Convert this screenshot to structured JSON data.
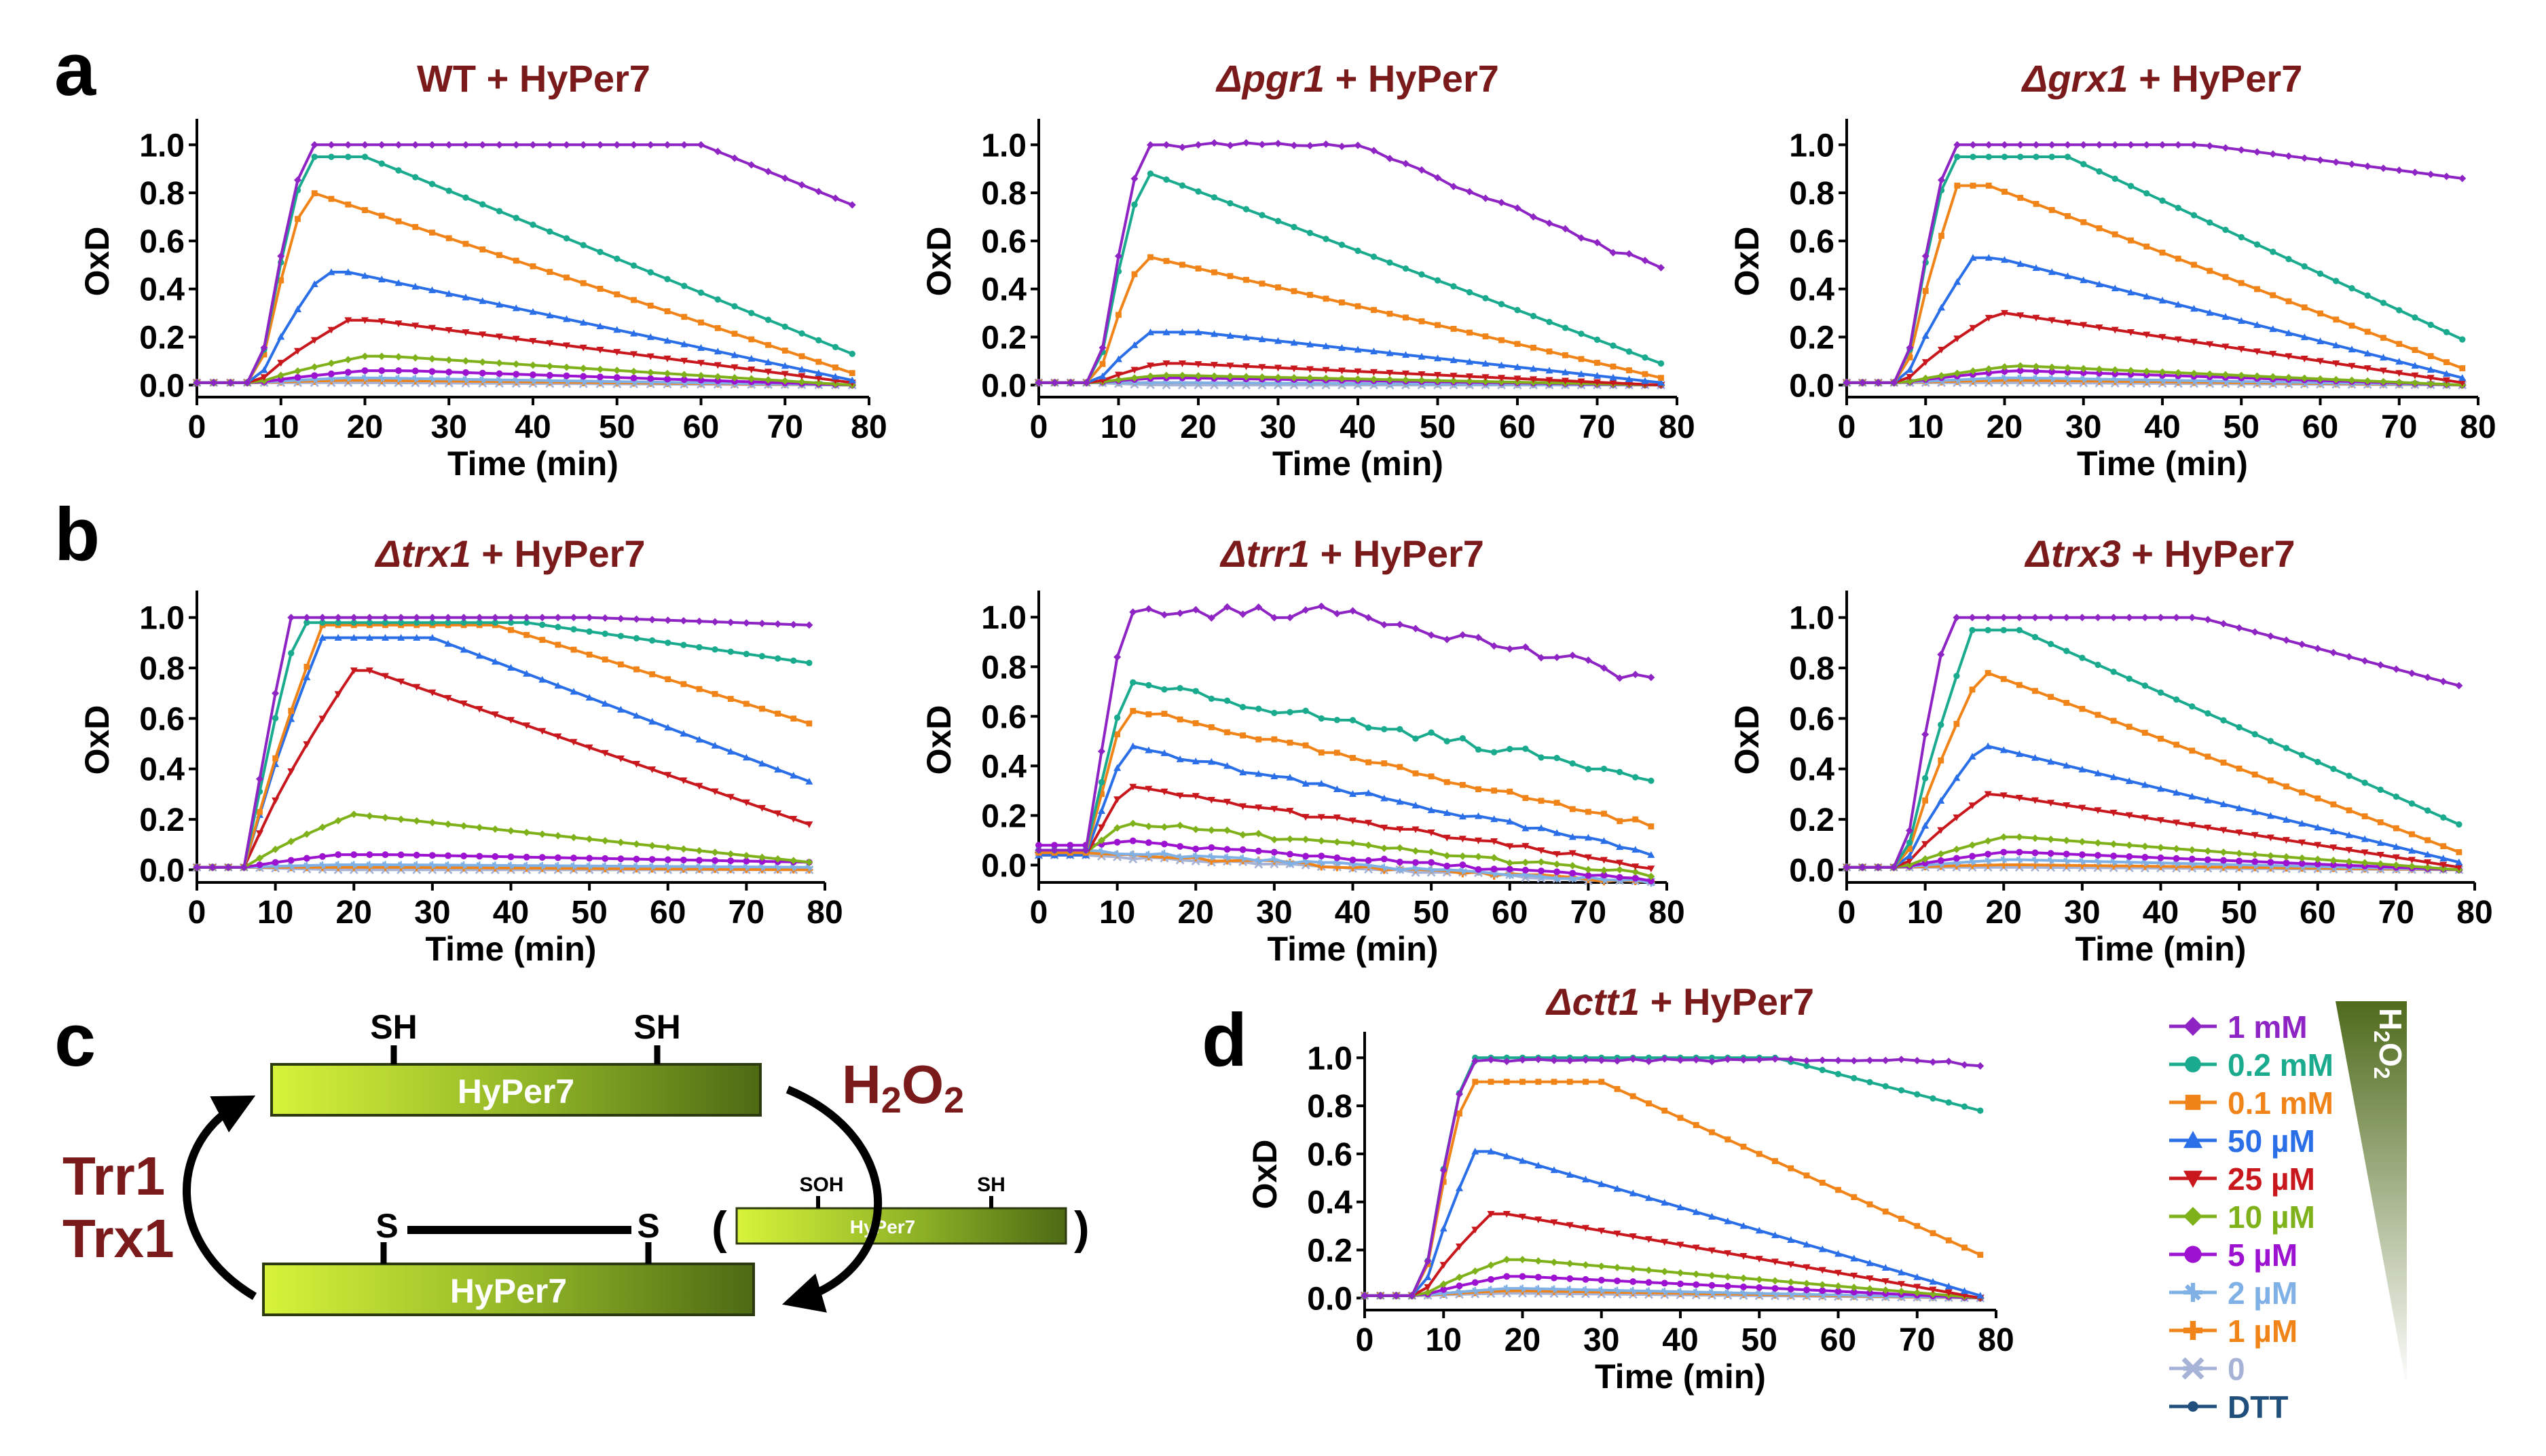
{
  "panel_letters": {
    "a": "a",
    "b": "b",
    "c": "c",
    "d": "d"
  },
  "colors": {
    "title": "#7a1a1a",
    "s_1mM": "#8e24c4",
    "s_02mM": "#1aab8f",
    "s_01mM": "#f08418",
    "s_50uM": "#2a6fe8",
    "s_25uM": "#c8181e",
    "s_10uM": "#7fb21a",
    "s_5uM": "#9c12d0",
    "s_2uM": "#7fb0e6",
    "s_1uM": "#f08418",
    "s_0": "#a6b3d6",
    "s_DTT": "#1f4f7a",
    "bar_light": "#d7f33a",
    "bar_dark": "#4d6a14",
    "wedge_light": "#ffffff",
    "wedge_dark": "#4f6b1c"
  },
  "legend": {
    "items": [
      {
        "label": "1 mM",
        "key": "s_1mM",
        "marker": "diamond"
      },
      {
        "label": "0.2 mM",
        "key": "s_02mM",
        "marker": "circle"
      },
      {
        "label": "0.1 mM",
        "key": "s_01mM",
        "marker": "square"
      },
      {
        "label": "50 µM",
        "key": "s_50uM",
        "marker": "triangle"
      },
      {
        "label": "25 µM",
        "key": "s_25uM",
        "marker": "tri-down"
      },
      {
        "label": "10 µM",
        "key": "s_10uM",
        "marker": "diamond"
      },
      {
        "label": "5 µM",
        "key": "s_5uM",
        "marker": "hex"
      },
      {
        "label": "2 µM",
        "key": "s_2uM",
        "marker": "star"
      },
      {
        "label": "1 µM",
        "key": "s_1uM",
        "marker": "plus"
      },
      {
        "label": "0",
        "key": "s_0",
        "marker": "x"
      },
      {
        "label": "DTT",
        "key": "s_DTT",
        "marker": "dot"
      }
    ],
    "wedge_label": "H2O2"
  },
  "diagram": {
    "sh": "SH",
    "s": "S",
    "soh": "SOH",
    "hyper7": "HyPer7",
    "h2o2": "H2O2",
    "trr1": "Trr1",
    "trx1": "Trx1",
    "paren_open": "(",
    "paren_close": ")"
  },
  "chart_data": [
    {
      "id": "WT",
      "panel_letter": "a",
      "type": "line",
      "title_italic": "",
      "title_plain": "WT + HyPer7",
      "xlabel": "Time (min)",
      "ylabel": "OxD",
      "xlim": [
        0,
        80
      ],
      "ylim": [
        -0.05,
        1.08
      ],
      "xticks": [
        0,
        10,
        20,
        30,
        40,
        50,
        60,
        70,
        80
      ],
      "yticks": [
        0.0,
        0.2,
        0.4,
        0.6,
        0.8,
        1.0
      ],
      "series": [
        {
          "key": "s_1mM",
          "name": "1 mM",
          "plateau": 1.0,
          "decay_start": 60,
          "end": 0.75,
          "rough": 0,
          "peak_at": 13
        },
        {
          "key": "s_02mM",
          "name": "0.2 mM",
          "plateau": 0.95,
          "decay_start": 20,
          "end": 0.13,
          "rough": 0,
          "peak_at": 13
        },
        {
          "key": "s_01mM",
          "name": "0.1 mM",
          "plateau": 0.81,
          "decay_start": 13,
          "end": 0.05,
          "rough": 0,
          "peak_at": 13
        },
        {
          "key": "s_50uM",
          "name": "50 µM",
          "plateau": 0.47,
          "decay_start": 18,
          "end": 0.02,
          "rough": 0,
          "peak_at": 15
        },
        {
          "key": "s_25uM",
          "name": "25 µM",
          "plateau": 0.27,
          "decay_start": 21,
          "end": 0.01,
          "rough": 0,
          "peak_at": 18
        },
        {
          "key": "s_10uM",
          "name": "10 µM",
          "plateau": 0.12,
          "decay_start": 23,
          "end": 0.0,
          "rough": 0,
          "peak_at": 20
        },
        {
          "key": "s_5uM",
          "name": "5 µM",
          "plateau": 0.06,
          "decay_start": 25,
          "end": 0.0,
          "rough": 0,
          "peak_at": 20
        },
        {
          "key": "s_2uM",
          "name": "2 µM",
          "plateau": 0.03,
          "decay_start": 20,
          "end": 0.0,
          "rough": 0,
          "peak_at": 18
        },
        {
          "key": "s_1uM",
          "name": "1 µM",
          "plateau": 0.02,
          "decay_start": 20,
          "end": 0.0,
          "rough": 0,
          "peak_at": 18
        },
        {
          "key": "s_0",
          "name": "0",
          "plateau": 0.01,
          "decay_start": 20,
          "end": 0.0,
          "rough": 0,
          "peak_at": 18
        }
      ]
    },
    {
      "id": "pgr1",
      "panel_letter": "",
      "type": "line",
      "title_italic": "Δpgr1",
      "title_plain": " + HyPer7",
      "xlabel": "Time (min)",
      "ylabel": "OxD",
      "xlim": [
        0,
        80
      ],
      "ylim": [
        -0.05,
        1.08
      ],
      "xticks": [
        0,
        10,
        20,
        30,
        40,
        50,
        60,
        70,
        80
      ],
      "yticks": [
        0.0,
        0.2,
        0.4,
        0.6,
        0.8,
        1.0
      ],
      "series": [
        {
          "key": "s_1mM",
          "name": "1 mM",
          "plateau": 1.0,
          "decay_start": 40,
          "end": 0.48,
          "rough": 0.012,
          "peak_at": 13
        },
        {
          "key": "s_02mM",
          "name": "0.2 mM",
          "plateau": 0.88,
          "decay_start": 14,
          "end": 0.09,
          "rough": 0,
          "peak_at": 13
        },
        {
          "key": "s_01mM",
          "name": "0.1 mM",
          "plateau": 0.54,
          "decay_start": 13,
          "end": 0.03,
          "rough": 0,
          "peak_at": 13
        },
        {
          "key": "s_50uM",
          "name": "50 µM",
          "plateau": 0.22,
          "decay_start": 20,
          "end": 0.01,
          "rough": 0,
          "peak_at": 14
        },
        {
          "key": "s_25uM",
          "name": "25 µM",
          "plateau": 0.09,
          "decay_start": 18,
          "end": 0.0,
          "rough": 0,
          "peak_at": 15
        },
        {
          "key": "s_10uM",
          "name": "10 µM",
          "plateau": 0.04,
          "decay_start": 18,
          "end": 0.0,
          "rough": 0,
          "peak_at": 15
        },
        {
          "key": "s_5uM",
          "name": "5 µM",
          "plateau": 0.03,
          "decay_start": 18,
          "end": 0.0,
          "rough": 0,
          "peak_at": 15
        },
        {
          "key": "s_2uM",
          "name": "2 µM",
          "plateau": 0.01,
          "decay_start": 18,
          "end": 0.0,
          "rough": 0,
          "peak_at": 15
        },
        {
          "key": "s_1uM",
          "name": "1 µM",
          "plateau": 0.01,
          "decay_start": 18,
          "end": 0.0,
          "rough": 0,
          "peak_at": 15
        },
        {
          "key": "s_0",
          "name": "0",
          "plateau": 0.0,
          "decay_start": 18,
          "end": 0.0,
          "rough": 0,
          "peak_at": 15
        }
      ]
    },
    {
      "id": "grx1",
      "panel_letter": "",
      "type": "line",
      "title_italic": "Δgrx1",
      "title_plain": " + HyPer7",
      "xlabel": "Time (min)",
      "ylabel": "OxD",
      "xlim": [
        0,
        80
      ],
      "ylim": [
        -0.05,
        1.08
      ],
      "xticks": [
        0,
        10,
        20,
        30,
        40,
        50,
        60,
        70,
        80
      ],
      "yticks": [
        0.0,
        0.2,
        0.4,
        0.6,
        0.8,
        1.0
      ],
      "series": [
        {
          "key": "s_1mM",
          "name": "1 mM",
          "plateau": 1.0,
          "decay_start": 45,
          "end": 0.86,
          "rough": 0,
          "peak_at": 13
        },
        {
          "key": "s_02mM",
          "name": "0.2 mM",
          "plateau": 0.95,
          "decay_start": 28,
          "end": 0.19,
          "rough": 0,
          "peak_at": 13
        },
        {
          "key": "s_01mM",
          "name": "0.1 mM",
          "plateau": 0.83,
          "decay_start": 18,
          "end": 0.07,
          "rough": 0,
          "peak_at": 14
        },
        {
          "key": "s_50uM",
          "name": "50 µM",
          "plateau": 0.53,
          "decay_start": 19,
          "end": 0.03,
          "rough": 0,
          "peak_at": 16
        },
        {
          "key": "s_25uM",
          "name": "25 µM",
          "plateau": 0.3,
          "decay_start": 20,
          "end": 0.01,
          "rough": 0,
          "peak_at": 19
        },
        {
          "key": "s_10uM",
          "name": "10 µM",
          "plateau": 0.08,
          "decay_start": 22,
          "end": 0.0,
          "rough": 0,
          "peak_at": 21
        },
        {
          "key": "s_5uM",
          "name": "5 µM",
          "plateau": 0.06,
          "decay_start": 22,
          "end": 0.0,
          "rough": 0,
          "peak_at": 21
        },
        {
          "key": "s_2uM",
          "name": "2 µM",
          "plateau": 0.03,
          "decay_start": 22,
          "end": 0.0,
          "rough": 0,
          "peak_at": 20
        },
        {
          "key": "s_1uM",
          "name": "1 µM",
          "plateau": 0.02,
          "decay_start": 22,
          "end": 0.0,
          "rough": 0,
          "peak_at": 20
        },
        {
          "key": "s_0",
          "name": "0",
          "plateau": 0.01,
          "decay_start": 22,
          "end": 0.0,
          "rough": 0,
          "peak_at": 20
        }
      ]
    },
    {
      "id": "trx1",
      "panel_letter": "b",
      "type": "line",
      "title_italic": "Δtrx1",
      "title_plain": " + HyPer7",
      "xlabel": "Time (min)",
      "ylabel": "OxD",
      "xlim": [
        0,
        80
      ],
      "ylim": [
        -0.05,
        1.08
      ],
      "xticks": [
        0,
        10,
        20,
        30,
        40,
        50,
        60,
        70,
        80
      ],
      "yticks": [
        0.0,
        0.2,
        0.4,
        0.6,
        0.8,
        1.0
      ],
      "series": [
        {
          "key": "s_1mM",
          "name": "1 mM",
          "plateau": 1.0,
          "decay_start": 50,
          "end": 0.97,
          "rough": 0,
          "peak_at": 12
        },
        {
          "key": "s_02mM",
          "name": "0.2 mM",
          "plateau": 0.98,
          "decay_start": 42,
          "end": 0.82,
          "rough": 0,
          "peak_at": 13
        },
        {
          "key": "s_01mM",
          "name": "0.1 mM",
          "plateau": 0.97,
          "decay_start": 38,
          "end": 0.58,
          "rough": 0,
          "peak_at": 16
        },
        {
          "key": "s_50uM",
          "name": "50 µM",
          "plateau": 0.92,
          "decay_start": 30,
          "end": 0.35,
          "rough": 0,
          "peak_at": 16
        },
        {
          "key": "s_25uM",
          "name": "25 µM",
          "plateau": 0.79,
          "decay_start": 22,
          "end": 0.18,
          "rough": 0,
          "peak_at": 20
        },
        {
          "key": "s_10uM",
          "name": "10 µM",
          "plateau": 0.22,
          "decay_start": 20,
          "end": 0.03,
          "rough": 0,
          "peak_at": 20
        },
        {
          "key": "s_5uM",
          "name": "5 µM",
          "plateau": 0.06,
          "decay_start": 25,
          "end": 0.03,
          "rough": 0,
          "peak_at": 18
        },
        {
          "key": "s_2uM",
          "name": "2 µM",
          "plateau": 0.02,
          "decay_start": 25,
          "end": 0.01,
          "rough": 0,
          "peak_at": 18
        },
        {
          "key": "s_1uM",
          "name": "1 µM",
          "plateau": 0.01,
          "decay_start": 25,
          "end": 0.0,
          "rough": 0,
          "peak_at": 18
        },
        {
          "key": "s_0",
          "name": "0",
          "plateau": 0.0,
          "decay_start": 25,
          "end": 0.0,
          "rough": 0,
          "peak_at": 18
        }
      ]
    },
    {
      "id": "trr1",
      "panel_letter": "",
      "type": "line",
      "title_italic": "Δtrr1",
      "title_plain": " + HyPer7",
      "xlabel": "Time (min)",
      "ylabel": "OxD",
      "xlim": [
        0,
        80
      ],
      "ylim": [
        -0.07,
        1.08
      ],
      "xticks": [
        0,
        10,
        20,
        30,
        40,
        50,
        60,
        70,
        80
      ],
      "yticks": [
        0.0,
        0.2,
        0.4,
        0.6,
        0.8,
        1.0
      ],
      "series": [
        {
          "key": "s_1mM",
          "name": "1 mM",
          "plateau": 1.02,
          "decay_start": 40,
          "end": 0.75,
          "rough": 0.025,
          "peak_at": 11,
          "start": 0.06
        },
        {
          "key": "s_02mM",
          "name": "0.2 mM",
          "plateau": 0.72,
          "decay_start": 14,
          "end": 0.36,
          "rough": 0.02,
          "peak_at": 11,
          "start": 0.06
        },
        {
          "key": "s_01mM",
          "name": "0.1 mM",
          "plateau": 0.62,
          "decay_start": 13,
          "end": 0.16,
          "rough": 0.012,
          "peak_at": 11,
          "start": 0.05
        },
        {
          "key": "s_50uM",
          "name": "50 µM",
          "plateau": 0.47,
          "decay_start": 12,
          "end": 0.05,
          "rough": 0.012,
          "peak_at": 11,
          "start": 0.04
        },
        {
          "key": "s_25uM",
          "name": "25 µM",
          "plateau": 0.31,
          "decay_start": 12,
          "end": -0.01,
          "rough": 0.01,
          "peak_at": 11,
          "start": 0.04
        },
        {
          "key": "s_10uM",
          "name": "10 µM",
          "plateau": 0.17,
          "decay_start": 12,
          "end": -0.04,
          "rough": 0.01,
          "peak_at": 11,
          "start": 0.05
        },
        {
          "key": "s_5uM",
          "name": "5 µM",
          "plateau": 0.09,
          "decay_start": 12,
          "end": -0.06,
          "rough": 0.008,
          "peak_at": 11,
          "start": 0.08
        },
        {
          "key": "s_2uM",
          "name": "2 µM",
          "plateau": 0.05,
          "decay_start": 12,
          "end": -0.07,
          "rough": 0.008,
          "peak_at": 11,
          "start": 0.06
        },
        {
          "key": "s_1uM",
          "name": "1 µM",
          "plateau": 0.04,
          "decay_start": 12,
          "end": -0.07,
          "rough": 0.008,
          "peak_at": 11,
          "start": 0.05
        },
        {
          "key": "s_0",
          "name": "0",
          "plateau": 0.03,
          "decay_start": 12,
          "end": -0.07,
          "rough": 0.006,
          "peak_at": 11,
          "start": 0.04
        }
      ]
    },
    {
      "id": "trx3",
      "panel_letter": "",
      "type": "line",
      "title_italic": "Δtrx3",
      "title_plain": " + HyPer7",
      "xlabel": "Time (min)",
      "ylabel": "OxD",
      "xlim": [
        0,
        80
      ],
      "ylim": [
        -0.05,
        1.08
      ],
      "xticks": [
        0,
        10,
        20,
        30,
        40,
        50,
        60,
        70,
        80
      ],
      "yticks": [
        0.0,
        0.2,
        0.4,
        0.6,
        0.8,
        1.0
      ],
      "series": [
        {
          "key": "s_1mM",
          "name": "1 mM",
          "plateau": 1.0,
          "decay_start": 45,
          "end": 0.73,
          "rough": 0,
          "peak_at": 13
        },
        {
          "key": "s_02mM",
          "name": "0.2 mM",
          "plateau": 0.95,
          "decay_start": 22,
          "end": 0.18,
          "rough": 0,
          "peak_at": 16
        },
        {
          "key": "s_01mM",
          "name": "0.1 mM",
          "plateau": 0.78,
          "decay_start": 18,
          "end": 0.07,
          "rough": 0,
          "peak_at": 17
        },
        {
          "key": "s_50uM",
          "name": "50 µM",
          "plateau": 0.49,
          "decay_start": 18,
          "end": 0.03,
          "rough": 0,
          "peak_at": 17
        },
        {
          "key": "s_25uM",
          "name": "25 µM",
          "plateau": 0.3,
          "decay_start": 19,
          "end": 0.01,
          "rough": 0,
          "peak_at": 18
        },
        {
          "key": "s_10uM",
          "name": "10 µM",
          "plateau": 0.13,
          "decay_start": 22,
          "end": 0.0,
          "rough": 0,
          "peak_at": 20
        },
        {
          "key": "s_5uM",
          "name": "5 µM",
          "plateau": 0.07,
          "decay_start": 22,
          "end": 0.0,
          "rough": 0,
          "peak_at": 20
        },
        {
          "key": "s_2uM",
          "name": "2 µM",
          "plateau": 0.04,
          "decay_start": 22,
          "end": 0.0,
          "rough": 0,
          "peak_at": 20
        },
        {
          "key": "s_1uM",
          "name": "1 µM",
          "plateau": 0.02,
          "decay_start": 22,
          "end": 0.0,
          "rough": 0,
          "peak_at": 20
        },
        {
          "key": "s_0",
          "name": "0",
          "plateau": 0.01,
          "decay_start": 22,
          "end": 0.0,
          "rough": 0,
          "peak_at": 20
        }
      ]
    },
    {
      "id": "ctt1",
      "panel_letter": "d",
      "type": "line",
      "title_italic": "Δctt1",
      "title_plain": " + HyPer7",
      "xlabel": "Time (min)",
      "ylabel": "OxD",
      "xlim": [
        0,
        80
      ],
      "ylim": [
        -0.05,
        1.08
      ],
      "xticks": [
        0,
        10,
        20,
        30,
        40,
        50,
        60,
        70,
        80
      ],
      "yticks": [
        0.0,
        0.2,
        0.4,
        0.6,
        0.8,
        1.0
      ],
      "series": [
        {
          "key": "s_1mM",
          "name": "1 mM",
          "plateau": 0.99,
          "decay_start": 70,
          "end": 0.97,
          "rough": 0.006,
          "peak_at": 13
        },
        {
          "key": "s_02mM",
          "name": "0.2 mM",
          "plateau": 1.0,
          "decay_start": 52,
          "end": 0.78,
          "rough": 0,
          "peak_at": 13
        },
        {
          "key": "s_01mM",
          "name": "0.1 mM",
          "plateau": 0.9,
          "decay_start": 30,
          "end": 0.18,
          "rough": 0,
          "peak_at": 13
        },
        {
          "key": "s_50uM",
          "name": "50 µM",
          "plateau": 0.61,
          "decay_start": 16,
          "end": 0.01,
          "rough": 0,
          "peak_at": 14
        },
        {
          "key": "s_25uM",
          "name": "25 µM",
          "plateau": 0.35,
          "decay_start": 18,
          "end": 0.0,
          "rough": 0,
          "peak_at": 16
        },
        {
          "key": "s_10uM",
          "name": "10 µM",
          "plateau": 0.16,
          "decay_start": 20,
          "end": 0.0,
          "rough": 0,
          "peak_at": 18
        },
        {
          "key": "s_5uM",
          "name": "5 µM",
          "plateau": 0.09,
          "decay_start": 20,
          "end": 0.0,
          "rough": 0,
          "peak_at": 18
        },
        {
          "key": "s_2uM",
          "name": "2 µM",
          "plateau": 0.04,
          "decay_start": 20,
          "end": 0.0,
          "rough": 0,
          "peak_at": 18
        },
        {
          "key": "s_1uM",
          "name": "1 µM",
          "plateau": 0.03,
          "decay_start": 20,
          "end": 0.0,
          "rough": 0,
          "peak_at": 18
        },
        {
          "key": "s_0",
          "name": "0",
          "plateau": 0.02,
          "decay_start": 20,
          "end": 0.0,
          "rough": 0,
          "peak_at": 18
        }
      ]
    }
  ]
}
